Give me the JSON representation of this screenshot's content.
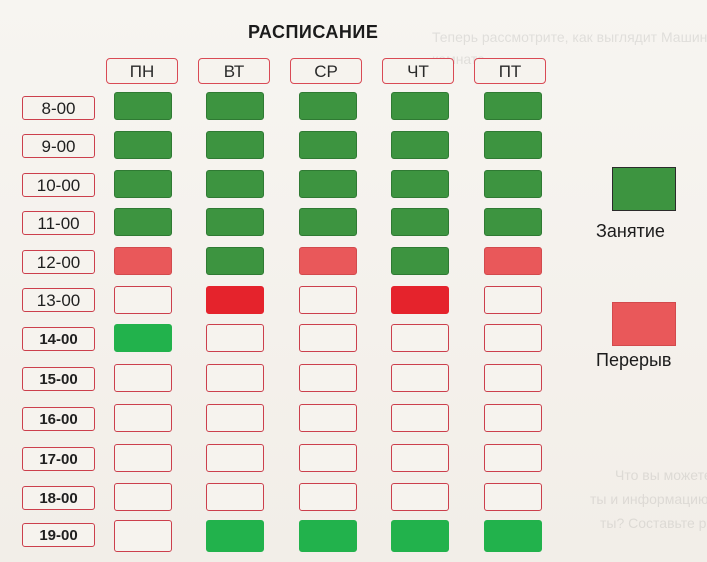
{
  "title": "РАСПИСАНИЕ",
  "days": [
    "ПН",
    "ВТ",
    "СР",
    "ЧТ",
    "ПТ"
  ],
  "times": [
    "8-00",
    "9-00",
    "10-00",
    "11-00",
    "12-00",
    "13-00",
    "14-00",
    "15-00",
    "16-00",
    "17-00",
    "18-00",
    "19-00"
  ],
  "legend": {
    "lesson_label": "Занятие",
    "break_label": "Перерыв",
    "lesson_color": "#3d9440",
    "break_color": "#e9585a"
  },
  "background_text": {
    "line1": "Теперь рассмотрите, как выглядит Машина",
    "line2": "комната.",
    "line3": "Что вы можете сказать о Маше, сравнив данные,",
    "line4": "ты и информацию, полученную при просмотре",
    "line5": "ты? Составьте рассказ о Маше."
  },
  "grid": [
    [
      "lesson",
      "lesson",
      "lesson",
      "lesson",
      "lesson"
    ],
    [
      "lesson",
      "lesson",
      "lesson",
      "lesson",
      "lesson"
    ],
    [
      "lesson",
      "lesson",
      "lesson",
      "lesson",
      "lesson"
    ],
    [
      "lesson",
      "lesson",
      "lesson",
      "lesson",
      "lesson"
    ],
    [
      "break",
      "lesson",
      "break",
      "lesson",
      "break"
    ],
    [
      "empty",
      "red",
      "empty",
      "red",
      "empty"
    ],
    [
      "bright",
      "empty",
      "empty",
      "empty",
      "empty"
    ],
    [
      "empty",
      "empty",
      "empty",
      "empty",
      "empty"
    ],
    [
      "empty",
      "empty",
      "empty",
      "empty",
      "empty"
    ],
    [
      "empty",
      "empty",
      "empty",
      "empty",
      "empty"
    ],
    [
      "empty",
      "empty",
      "empty",
      "empty",
      "empty"
    ],
    [
      "empty",
      "bright",
      "bright",
      "bright",
      "bright"
    ]
  ]
}
